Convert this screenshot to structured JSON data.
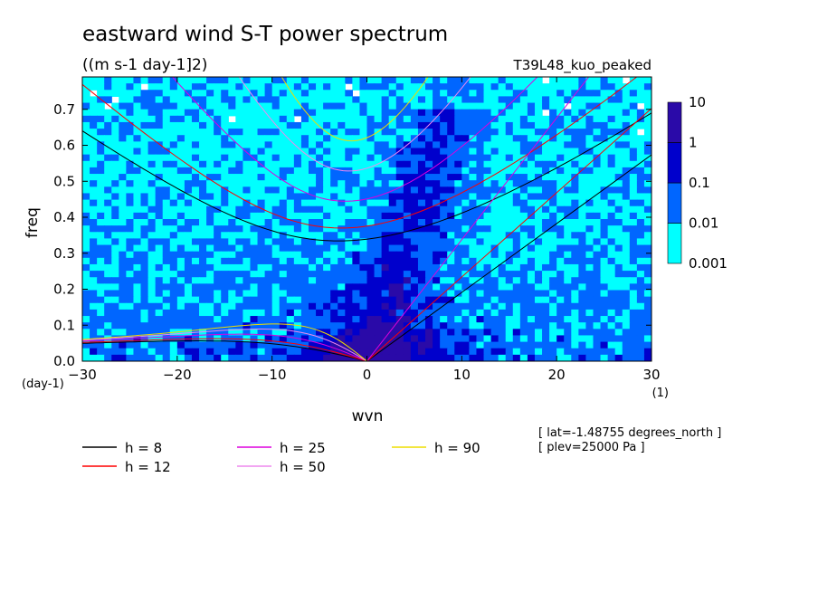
{
  "chart_data": {
    "type": "heatmap",
    "title": "eastward wind S-T power spectrum",
    "subtitle": "((m s-1 day-1]2)",
    "run_label": "T39L48_kuo_peaked",
    "xlabel": "wvn",
    "ylabel": "freq",
    "x_unit": "(1)",
    "y_unit": "(day-1)",
    "xlim": [
      -30,
      30
    ],
    "ylim": [
      0,
      0.79
    ],
    "xticks": [
      -30,
      -20,
      -10,
      0,
      10,
      20,
      30
    ],
    "yticks": [
      0.0,
      0.1,
      0.2,
      0.3,
      0.4,
      0.5,
      0.6,
      0.7
    ],
    "colorbar": {
      "levels": [
        "10",
        "1",
        "0.1",
        "0.01",
        "0.001"
      ],
      "colors": [
        "#00ffff",
        "#0066ff",
        "#0000cc",
        "#2a0aa8"
      ]
    },
    "dispersion_curves": [
      {
        "label": "h = 8",
        "h": 8,
        "color": "#000000"
      },
      {
        "label": "h = 12",
        "h": 12,
        "color": "#ff0000"
      },
      {
        "label": "h = 25",
        "h": 25,
        "color": "#dd00dd"
      },
      {
        "label": "h = 50",
        "h": 50,
        "color": "#ee88ee"
      },
      {
        "label": "h = 90",
        "h": 90,
        "color": "#eedd00"
      }
    ],
    "annotations": [
      "[ lat=-1.48755 degrees_north ]",
      "[ plev=25000 Pa ]"
    ]
  }
}
